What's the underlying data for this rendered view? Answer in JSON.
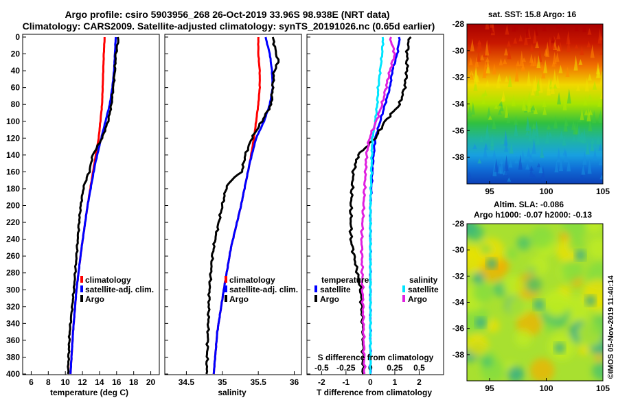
{
  "header": {
    "title_line1": "Argo profile: csiro 5903956_268 26-Oct-2019 33.96S 98.938E (NRT data)",
    "title_line2": "Climatology: CARS2009. Satellite-adjusted climatology: synTS_20191026.nc (0.65d earlier)"
  },
  "footer": {
    "watermark": "©IMOS 05-Nov-2019 11:40:14"
  },
  "chart_data": [
    {
      "id": "temperature",
      "type": "line",
      "xlabel": "temperature (deg C)",
      "ylabel": "",
      "xlim": [
        5,
        21
      ],
      "ylim": [
        400,
        0
      ],
      "xticks": [
        "6",
        "8",
        "10",
        "12",
        "14",
        "16",
        "18",
        "20"
      ],
      "xtick_values": [
        6,
        8,
        10,
        12,
        14,
        16,
        18,
        20
      ],
      "yticks": [
        "0",
        "20",
        "40",
        "60",
        "80",
        "100",
        "120",
        "140",
        "160",
        "180",
        "200",
        "220",
        "240",
        "260",
        "280",
        "300",
        "320",
        "340",
        "360",
        "380",
        "400"
      ],
      "legend": [
        "climatology",
        "satellite-adj. clim.",
        "Argo"
      ],
      "series": [
        {
          "name": "climatology",
          "color": "#ff0000",
          "depth": [
            0,
            20,
            50,
            80,
            100,
            120,
            150,
            200,
            250,
            300,
            350,
            400
          ],
          "values": [
            14.6,
            14.5,
            14.4,
            14.3,
            14.1,
            13.9,
            13.4,
            12.6,
            11.9,
            11.3,
            10.9,
            10.6
          ]
        },
        {
          "name": "satellite-adj. clim.",
          "color": "#0000ff",
          "depth": [
            0,
            20,
            40,
            60,
            80,
            100,
            120,
            150,
            200,
            250,
            300,
            350,
            400
          ],
          "values": [
            15.9,
            15.8,
            15.7,
            15.5,
            15.2,
            14.7,
            14.2,
            13.5,
            12.6,
            11.9,
            11.3,
            10.9,
            10.6
          ]
        },
        {
          "name": "Argo",
          "color": "#000000",
          "depth": [
            0,
            10,
            20,
            40,
            60,
            80,
            100,
            120,
            140,
            160,
            170,
            180,
            200,
            220,
            260,
            300,
            350,
            400
          ],
          "values": [
            16.2,
            16.1,
            15.9,
            15.8,
            15.6,
            15.4,
            15.0,
            14.3,
            13.2,
            12.8,
            12.4,
            12.1,
            11.8,
            11.6,
            11.3,
            11.0,
            10.5,
            10.3
          ]
        }
      ]
    },
    {
      "id": "salinity",
      "type": "line",
      "xlabel": "salinity",
      "ylabel": "",
      "xlim": [
        34.2,
        36.1
      ],
      "ylim": [
        400,
        0
      ],
      "xticks": [
        "34.5",
        "35",
        "35.5",
        "36"
      ],
      "xtick_values": [
        34.5,
        35,
        35.5,
        36
      ],
      "legend": [
        "climatology",
        "satellite-adj. clim.",
        "Argo"
      ],
      "series": [
        {
          "name": "climatology",
          "color": "#ff0000",
          "depth": [
            0,
            20,
            40,
            60,
            80,
            100,
            120,
            150,
            200,
            250,
            300,
            350,
            400
          ],
          "values": [
            35.5,
            35.5,
            35.52,
            35.52,
            35.5,
            35.47,
            35.44,
            35.38,
            35.26,
            35.12,
            35.02,
            34.93,
            34.88
          ]
        },
        {
          "name": "satellite-adj. clim.",
          "color": "#0000ff",
          "depth": [
            0,
            20,
            40,
            60,
            80,
            100,
            120,
            150,
            200,
            250,
            300,
            350,
            400
          ],
          "values": [
            35.6,
            35.66,
            35.69,
            35.7,
            35.66,
            35.58,
            35.47,
            35.38,
            35.26,
            35.12,
            35.02,
            34.93,
            34.88
          ]
        },
        {
          "name": "Argo",
          "color": "#000000",
          "depth": [
            0,
            20,
            30,
            40,
            60,
            80,
            100,
            120,
            140,
            160,
            170,
            180,
            200,
            220,
            240,
            260,
            300,
            350,
            400
          ],
          "values": [
            35.7,
            35.75,
            35.78,
            35.72,
            35.7,
            35.68,
            35.55,
            35.41,
            35.32,
            35.27,
            35.12,
            35.05,
            35.0,
            34.95,
            34.9,
            34.86,
            34.82,
            34.8,
            34.78
          ]
        }
      ]
    },
    {
      "id": "difference",
      "type": "line",
      "xlabel": "T difference from climatology",
      "xlabel_top": "S difference from climatology",
      "xlim": [
        -2.6,
        3.0
      ],
      "ylim": [
        400,
        0
      ],
      "xticks": [
        "-2",
        "-1",
        "0",
        "1",
        "2"
      ],
      "xtick_values": [
        -2,
        -1,
        0,
        1,
        2
      ],
      "sticks": [
        "-0.5",
        "-0.25",
        "0",
        "0.25",
        "0.5"
      ],
      "stick_values": [
        -0.5,
        -0.25,
        0,
        0.25,
        0.5
      ],
      "legend_temperature": {
        "title": "temperature",
        "items": [
          "satellite",
          "Argo"
        ]
      },
      "legend_salinity": {
        "title": "salinity",
        "items": [
          "satellite",
          "Argo"
        ]
      },
      "series": [
        {
          "name": "T satellite",
          "color": "#0000ff",
          "depth": [
            0,
            20,
            40,
            60,
            80,
            100,
            120,
            150,
            200,
            300,
            400
          ],
          "values": [
            1.2,
            1.1,
            0.9,
            0.8,
            0.6,
            0.4,
            0.2,
            0.1,
            0.0,
            0.0,
            0.0
          ]
        },
        {
          "name": "T Argo",
          "color": "#000000",
          "depth": [
            0,
            20,
            40,
            60,
            80,
            100,
            120,
            140,
            160,
            200,
            240,
            300,
            350,
            400
          ],
          "values": [
            1.6,
            1.5,
            1.5,
            1.4,
            1.2,
            0.6,
            0.2,
            -0.5,
            -0.7,
            -0.8,
            -0.8,
            -0.4,
            -0.3,
            -0.3
          ]
        },
        {
          "name": "S satellite",
          "color": "#00e5ff",
          "depth": [
            0,
            20,
            40,
            60,
            80,
            100,
            120,
            200,
            300,
            400
          ],
          "values": [
            0.13,
            0.12,
            0.1,
            0.08,
            0.07,
            0.05,
            0.02,
            0.0,
            0.0,
            0.0
          ]
        },
        {
          "name": "S Argo",
          "color": "#e020e0",
          "depth": [
            0,
            20,
            40,
            60,
            80,
            100,
            120,
            140,
            160,
            200,
            240,
            300,
            350,
            400
          ],
          "values": [
            0.2,
            0.25,
            0.2,
            0.16,
            0.12,
            0.06,
            -0.01,
            -0.04,
            -0.05,
            -0.07,
            -0.09,
            -0.08,
            -0.07,
            -0.06
          ]
        }
      ]
    },
    {
      "id": "sst_map",
      "type": "heatmap",
      "title": "sat. SST: 15.8 Argo: 16",
      "xticks": [
        "95",
        "100",
        "105"
      ],
      "xtick_values": [
        95,
        100,
        105
      ],
      "yticks": [
        "-28",
        "-30",
        "-32",
        "-34",
        "-36",
        "-38"
      ],
      "ytick_values": [
        -28,
        -30,
        -32,
        -34,
        -36,
        -38
      ],
      "xlim": [
        93,
        105
      ],
      "ylim": [
        -40,
        -28
      ],
      "colors": [
        "#b00000",
        "#e23000",
        "#ff8800",
        "#f0e000",
        "#b0e800",
        "#40c840",
        "#20b8a0",
        "#1890e0",
        "#1050c8"
      ]
    },
    {
      "id": "sla_map",
      "type": "heatmap",
      "title_line1": "Altim. SLA: -0.086",
      "title_line2": "Argo h1000: -0.07 h2000: -0.13",
      "xticks": [
        "95",
        "100",
        "105"
      ],
      "xtick_values": [
        95,
        100,
        105
      ],
      "yticks": [
        "-28",
        "-30",
        "-32",
        "-34",
        "-36",
        "-38"
      ],
      "ytick_values": [
        -28,
        -30,
        -32,
        -34,
        -36,
        -38
      ],
      "xlim": [
        93,
        105
      ],
      "ylim": [
        -40,
        -28
      ],
      "colors": [
        "#f0e000",
        "#c0ec20",
        "#80dc40",
        "#40c070",
        "#20a890",
        "#f0b000"
      ]
    }
  ]
}
